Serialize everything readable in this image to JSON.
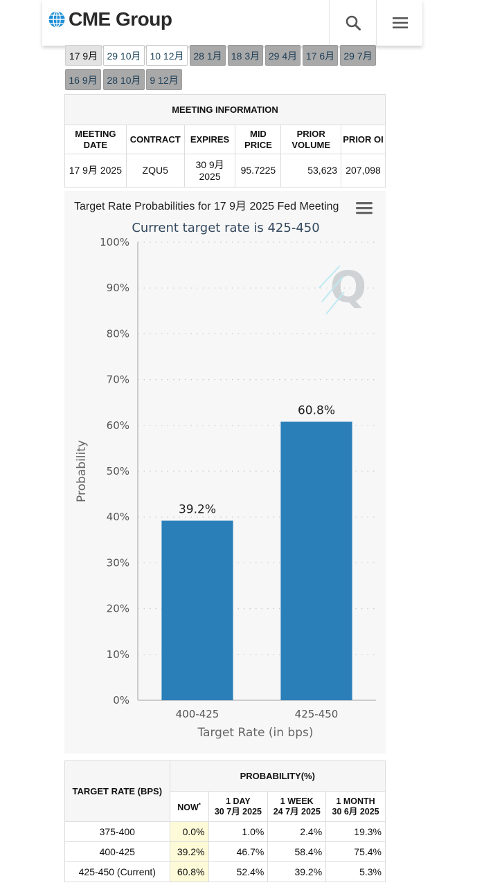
{
  "header": {
    "logo_text": "CME Group",
    "search_icon": "search-icon",
    "menu_icon": "hamburger-menu-icon"
  },
  "tabs": [
    {
      "label": "17 9月",
      "state": "active"
    },
    {
      "label": "29 10月",
      "state": "white"
    },
    {
      "label": "10 12月",
      "state": "white"
    },
    {
      "label": "28 1月",
      "state": "gray"
    },
    {
      "label": "18 3月",
      "state": "gray"
    },
    {
      "label": "29 4月",
      "state": "gray"
    },
    {
      "label": "17 6月",
      "state": "gray"
    },
    {
      "label": "29 7月",
      "state": "gray"
    },
    {
      "label": "16 9月",
      "state": "gray"
    },
    {
      "label": "28 10月",
      "state": "gray"
    },
    {
      "label": "9 12月",
      "state": "gray"
    }
  ],
  "meeting_info": {
    "caption": "MEETING INFORMATION",
    "headers": {
      "meeting_date": "MEETING DATE",
      "contract": "CONTRACT",
      "expires": "EXPIRES",
      "mid_price": "MID PRICE",
      "prior_volume": "PRIOR VOLUME",
      "prior_oi": "PRIOR OI"
    },
    "row": {
      "meeting_date": "17 9月 2025",
      "contract": "ZQU5",
      "expires": "30 9月 2025",
      "mid_price": "95.7225",
      "prior_volume": "53,623",
      "prior_oi": "207,098"
    }
  },
  "chart_data": {
    "type": "bar",
    "title": "Target Rate Probabilities for 17 9月 2025 Fed Meeting",
    "subtitle": "Current target rate is 425-450",
    "xlabel": "Target Rate (in bps)",
    "ylabel": "Probability",
    "categories": [
      "400-425",
      "425-450"
    ],
    "values": [
      39.2,
      60.8
    ],
    "data_labels": [
      "39.2%",
      "60.8%"
    ],
    "ylim": [
      0,
      100
    ],
    "yticks": [
      "0%",
      "10%",
      "20%",
      "30%",
      "40%",
      "50%",
      "60%",
      "70%",
      "80%",
      "90%",
      "100%"
    ],
    "grid": true,
    "bar_color": "#2b7fb8",
    "menu_icon": "chart-menu-icon",
    "watermark": "Q"
  },
  "probability_table": {
    "target_rate_header": "TARGET RATE (BPS)",
    "probability_header": "PROBABILITY(%)",
    "columns": [
      {
        "line1": "NOW",
        "line2": "",
        "sup": "*"
      },
      {
        "line1": "1 DAY",
        "line2": "30 7月 2025",
        "sup": ""
      },
      {
        "line1": "1 WEEK",
        "line2": "24 7月 2025",
        "sup": ""
      },
      {
        "line1": "1 MONTH",
        "line2": "30 6月 2025",
        "sup": ""
      }
    ],
    "rows": [
      {
        "rate": "375-400",
        "now": "0.0%",
        "day": "1.0%",
        "week": "2.4%",
        "month": "19.3%"
      },
      {
        "rate": "400-425",
        "now": "39.2%",
        "day": "46.7%",
        "week": "58.4%",
        "month": "75.4%"
      },
      {
        "rate": "425-450 (Current)",
        "now": "60.8%",
        "day": "52.4%",
        "week": "39.2%",
        "month": "5.3%"
      }
    ]
  }
}
